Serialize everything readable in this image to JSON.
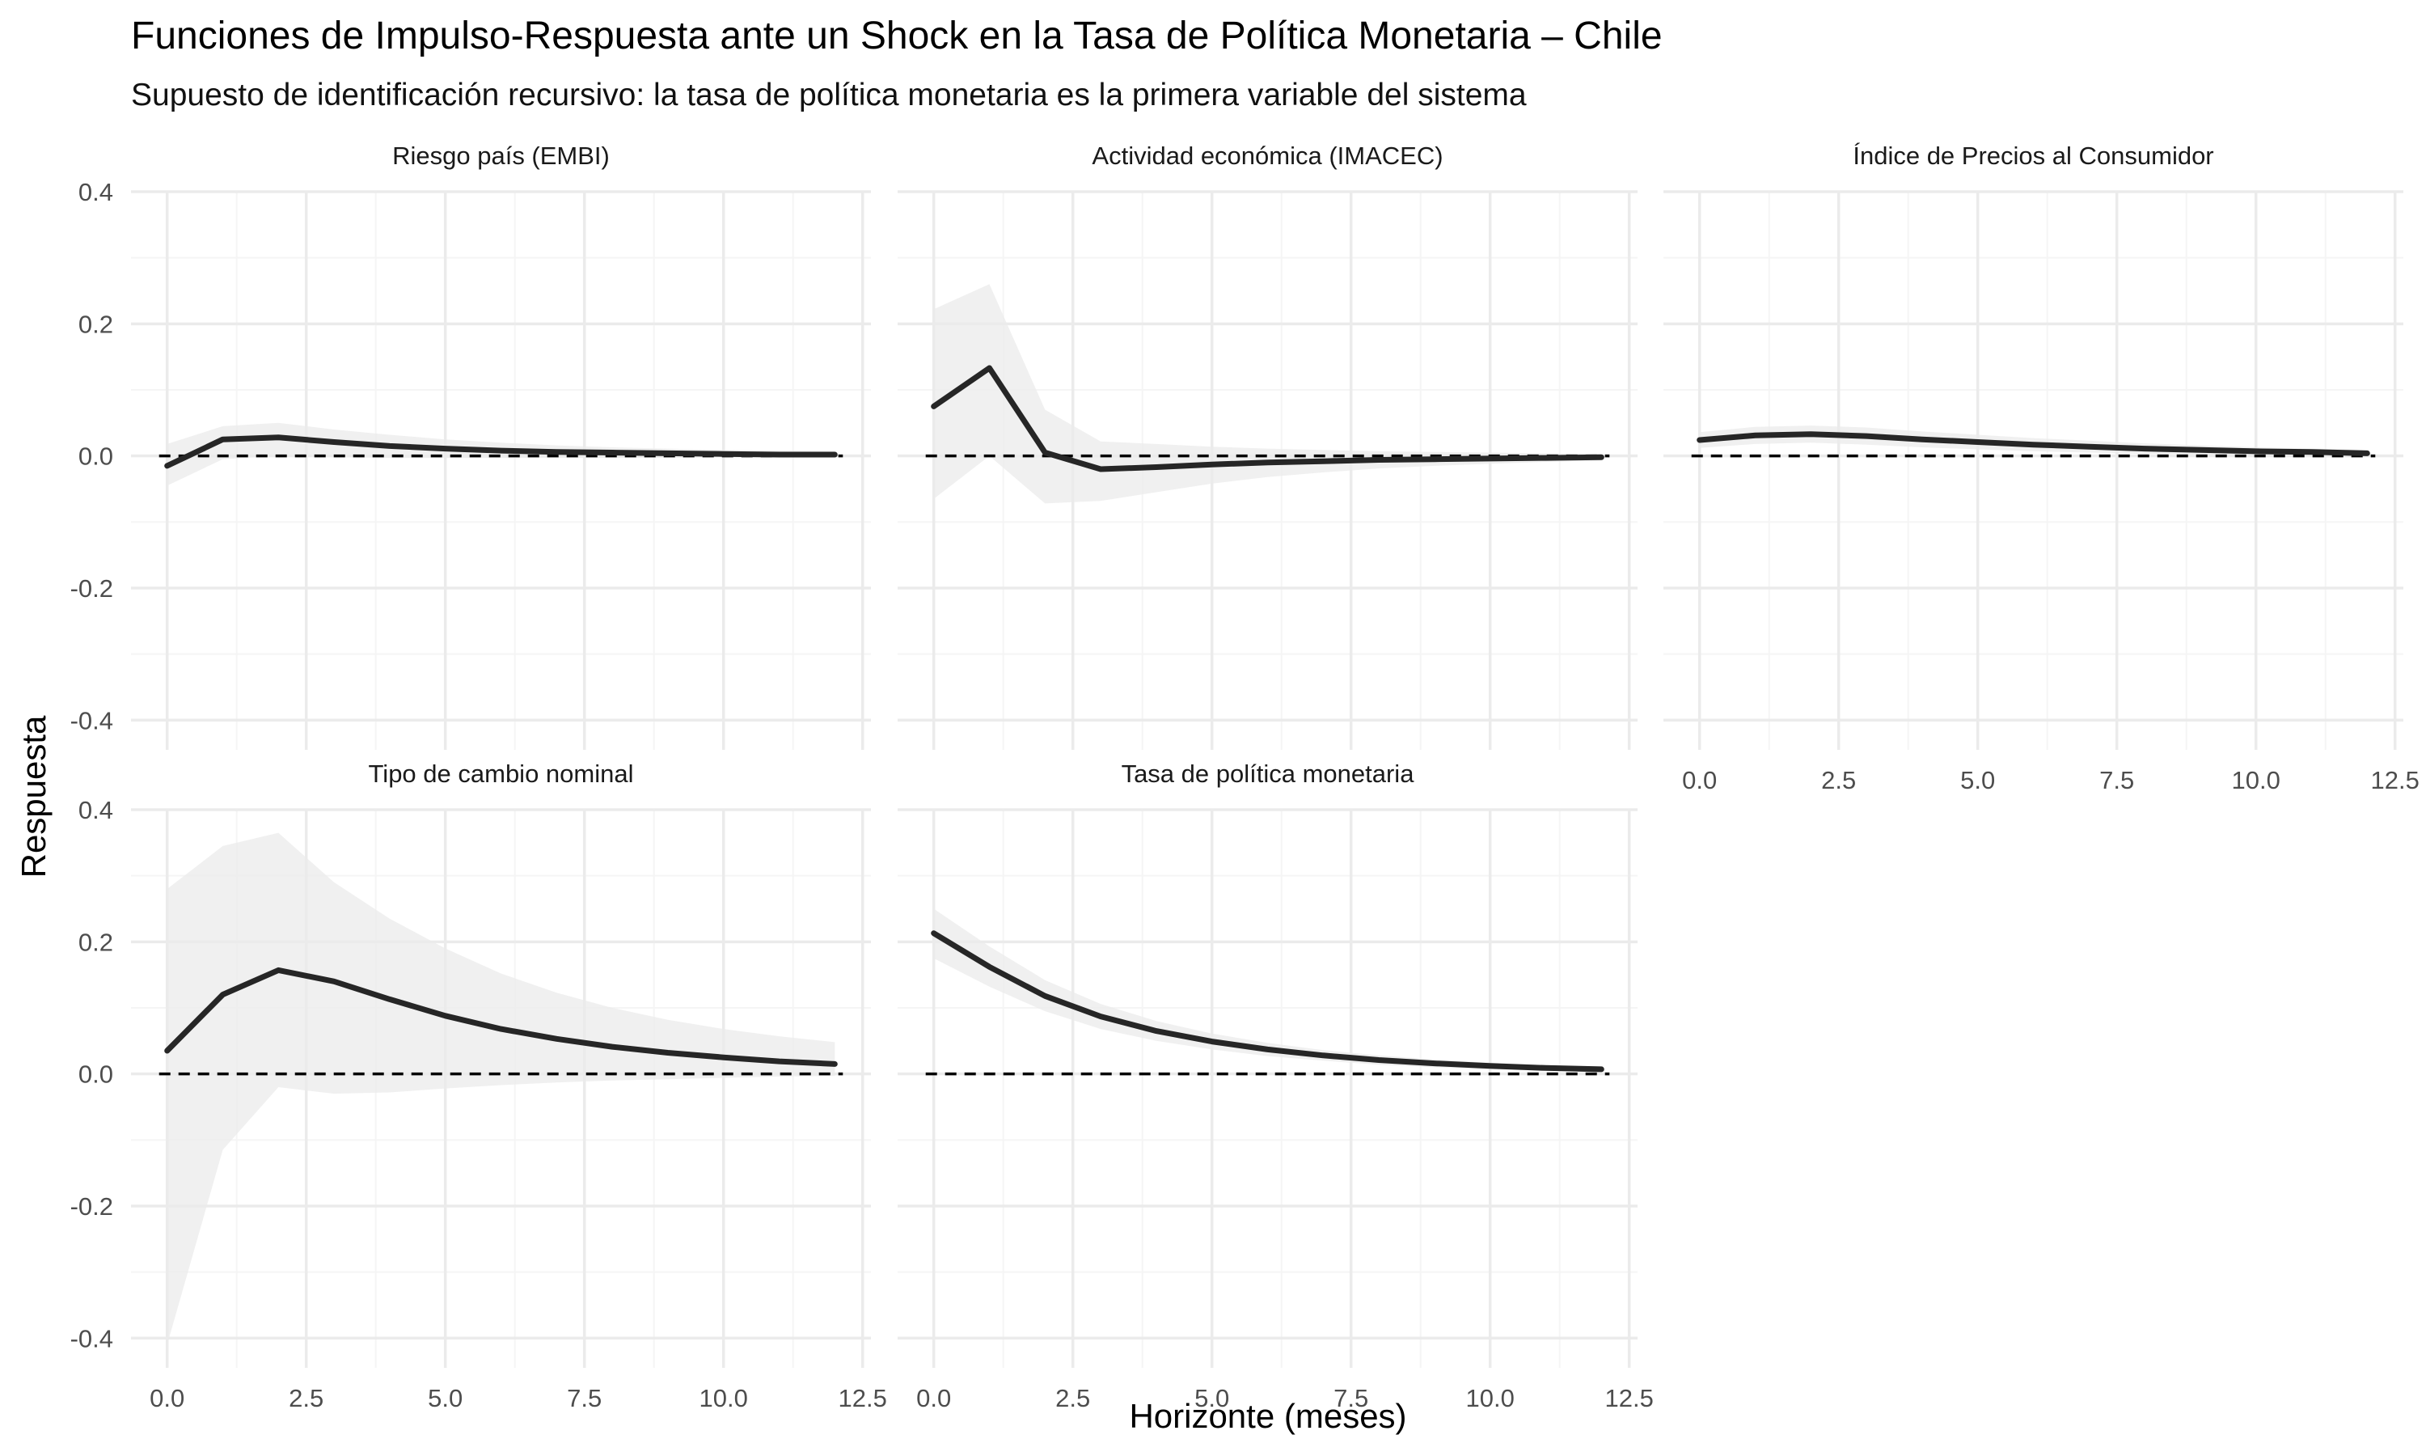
{
  "chart_data": {
    "type": "line",
    "title": "Funciones de Impulso-Respuesta ante un Shock en la Tasa de Política Monetaria – Chile",
    "subtitle": "Supuesto de identificación recursivo: la tasa de política monetaria es la primera variable del sistema",
    "xlabel": "Horizonte (meses)",
    "ylabel": "Respuesta",
    "xlim": [
      0,
      12.5
    ],
    "ylim": [
      -0.4,
      0.4
    ],
    "x_ticks": [
      0,
      2.5,
      5,
      7.5,
      10,
      12.5
    ],
    "x_tick_labels": [
      "0.0",
      "2.5",
      "5.0",
      "7.5",
      "10.0",
      "12.5"
    ],
    "y_ticks": [
      -0.4,
      -0.2,
      0,
      0.2,
      0.4
    ],
    "y_tick_labels": [
      "-0.4",
      "-0.2",
      "0.0",
      "0.2",
      "0.4"
    ],
    "grid": true,
    "reference_line": {
      "y": 0,
      "style": "dashed"
    },
    "colors": {
      "line": "#262626",
      "band": "#ebebeb",
      "grid_major": "#ebebeb",
      "grid_minor": "#f5f5f5",
      "reference": "#000000"
    },
    "x": [
      0,
      1,
      2,
      3,
      4,
      5,
      6,
      7,
      8,
      9,
      10,
      11,
      12
    ],
    "panels": [
      {
        "strip": "Riesgo país (EMBI)",
        "response": [
          -0.015,
          0.025,
          0.028,
          0.021,
          0.015,
          0.011,
          0.008,
          0.006,
          0.005,
          0.004,
          0.003,
          0.002,
          0.002
        ],
        "lower": [
          -0.045,
          -0.005,
          0.0,
          -0.002,
          -0.003,
          -0.003,
          -0.003,
          -0.003,
          -0.003,
          -0.003,
          -0.002,
          -0.002,
          -0.002
        ],
        "upper": [
          0.018,
          0.045,
          0.05,
          0.04,
          0.032,
          0.025,
          0.02,
          0.016,
          0.013,
          0.011,
          0.009,
          0.008,
          0.007
        ]
      },
      {
        "strip": "Actividad económica (IMACEC)",
        "response": [
          0.075,
          0.133,
          0.005,
          -0.02,
          -0.017,
          -0.013,
          -0.01,
          -0.008,
          -0.006,
          -0.005,
          -0.004,
          -0.003,
          -0.002
        ],
        "lower": [
          -0.065,
          0.0,
          -0.072,
          -0.068,
          -0.055,
          -0.042,
          -0.032,
          -0.025,
          -0.019,
          -0.015,
          -0.012,
          -0.009,
          -0.007
        ],
        "upper": [
          0.222,
          0.26,
          0.07,
          0.022,
          0.018,
          0.014,
          0.011,
          0.009,
          0.007,
          0.006,
          0.005,
          0.004,
          0.003
        ]
      },
      {
        "strip": "Índice de Precios al Consumidor",
        "response": [
          0.024,
          0.031,
          0.033,
          0.03,
          0.025,
          0.021,
          0.017,
          0.014,
          0.011,
          0.009,
          0.007,
          0.006,
          0.004
        ],
        "lower": [
          0.012,
          0.018,
          0.02,
          0.017,
          0.013,
          0.01,
          0.007,
          0.005,
          0.003,
          0.002,
          0.001,
          0.0,
          0.0
        ],
        "upper": [
          0.036,
          0.044,
          0.046,
          0.043,
          0.037,
          0.032,
          0.027,
          0.023,
          0.019,
          0.016,
          0.013,
          0.011,
          0.009
        ]
      },
      {
        "strip": "Tipo de cambio nominal",
        "response": [
          0.035,
          0.12,
          0.157,
          0.14,
          0.113,
          0.088,
          0.068,
          0.053,
          0.041,
          0.032,
          0.025,
          0.019,
          0.015
        ],
        "lower": [
          -0.41,
          -0.115,
          -0.02,
          -0.03,
          -0.028,
          -0.022,
          -0.017,
          -0.013,
          -0.01,
          -0.008,
          -0.006,
          -0.004,
          -0.003
        ],
        "upper": [
          0.28,
          0.345,
          0.365,
          0.29,
          0.235,
          0.19,
          0.152,
          0.123,
          0.1,
          0.082,
          0.068,
          0.057,
          0.048
        ]
      },
      {
        "strip": "Tasa de política monetaria",
        "response": [
          0.213,
          0.162,
          0.118,
          0.087,
          0.065,
          0.049,
          0.037,
          0.028,
          0.021,
          0.016,
          0.012,
          0.009,
          0.007
        ],
        "lower": [
          0.175,
          0.132,
          0.095,
          0.068,
          0.05,
          0.037,
          0.027,
          0.02,
          0.014,
          0.01,
          0.007,
          0.005,
          0.003
        ],
        "upper": [
          0.25,
          0.193,
          0.142,
          0.106,
          0.08,
          0.061,
          0.047,
          0.036,
          0.028,
          0.022,
          0.017,
          0.013,
          0.011
        ]
      }
    ]
  }
}
